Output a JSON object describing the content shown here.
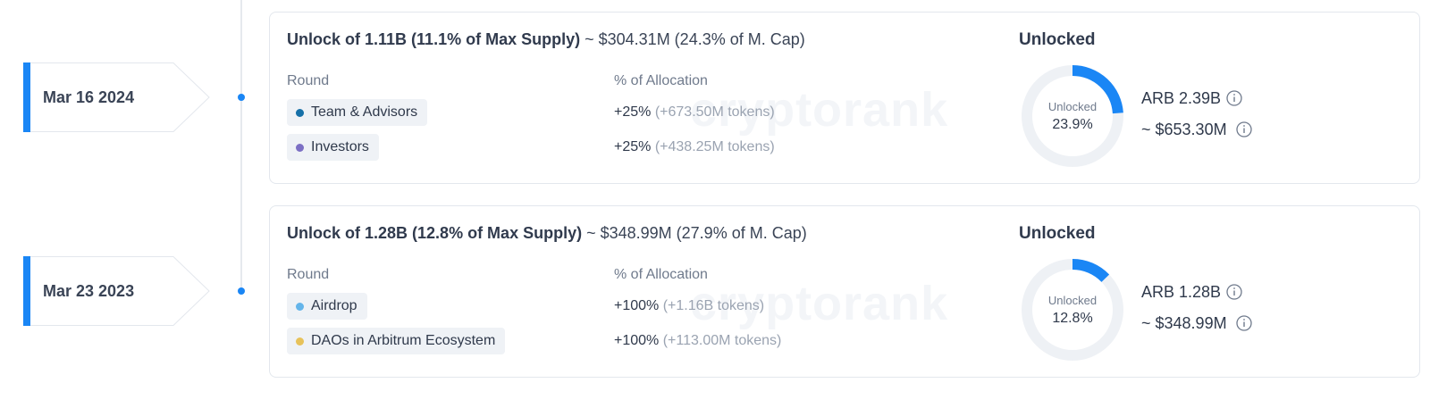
{
  "timeline": [
    {
      "date": "Mar 16 2024",
      "title_main": "Unlock of 1.11B (11.1% of Max Supply)",
      "title_extra": "~ $304.31M (24.3% of M. Cap)",
      "round_header": "Round",
      "alloc_header": "% of Allocation",
      "rounds": [
        {
          "name": "Team & Advisors",
          "color": "#1670a8",
          "pct": "+25%",
          "tokens": "(+673.50M tokens)"
        },
        {
          "name": "Investors",
          "color": "#7c6fc4",
          "pct": "+25%",
          "tokens": "(+438.25M tokens)"
        }
      ],
      "unlocked_header": "Unlocked",
      "donut_label": "Unlocked",
      "donut_pct": "23.9%",
      "donut_fraction": 0.239,
      "arb_amount": "ARB 2.39B",
      "usd_amount": "~ $653.30M"
    },
    {
      "date": "Mar 23 2023",
      "title_main": "Unlock of 1.28B (12.8% of Max Supply)",
      "title_extra": "~ $348.99M (27.9% of M. Cap)",
      "round_header": "Round",
      "alloc_header": "% of Allocation",
      "rounds": [
        {
          "name": "Airdrop",
          "color": "#64b5ea",
          "pct": "+100%",
          "tokens": "(+1.16B tokens)"
        },
        {
          "name": "DAOs in Arbitrum Ecosystem",
          "color": "#e7c25a",
          "pct": "+100%",
          "tokens": "(+113.00M tokens)"
        }
      ],
      "unlocked_header": "Unlocked",
      "donut_label": "Unlocked",
      "donut_pct": "12.8%",
      "donut_fraction": 0.128,
      "arb_amount": "ARB 1.28B",
      "usd_amount": "~ $348.99M"
    }
  ],
  "watermark": "cryptorank",
  "colors": {
    "accent": "#1a86f5",
    "track": "#eef1f5"
  },
  "icons": {
    "info": "info-icon"
  }
}
